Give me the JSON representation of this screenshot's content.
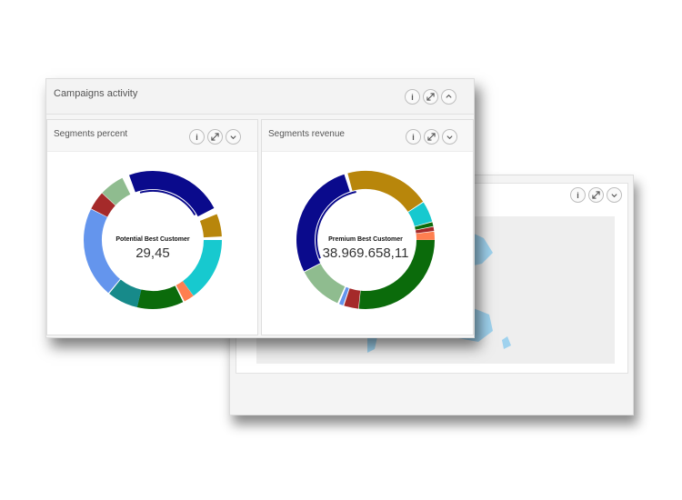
{
  "campaigns_panel": {
    "title": "Campaigns activity",
    "buttons": {
      "info": "i",
      "expand": "expand-icon",
      "collapse": "chevron-up-icon"
    }
  },
  "segments_percent": {
    "title": "Segments percent",
    "center_label": "Potential Best Customer",
    "center_value": "29,45",
    "buttons": {
      "info": "i",
      "expand": "expand-icon",
      "more": "chevron-down-icon"
    }
  },
  "segments_revenue": {
    "title": "Segments revenue",
    "center_label": "Premium Best Customer",
    "center_value": "38.969.658,11",
    "buttons": {
      "info": "i",
      "expand": "expand-icon",
      "more": "chevron-down-icon"
    }
  },
  "map_panel": {
    "buttons": {
      "info": "i",
      "expand": "expand-icon",
      "more": "chevron-down-icon"
    }
  },
  "colors": {
    "navy": "#0a0a8c",
    "gold": "#b8860b",
    "cyan": "#17c9cf",
    "green": "#0b6b0b",
    "blue": "#6495ed",
    "teal": "#178a8a",
    "red": "#a52a2a",
    "sage": "#8fbc8f",
    "orange": "#ff7f50",
    "map_land": "#9fd2ee"
  }
}
